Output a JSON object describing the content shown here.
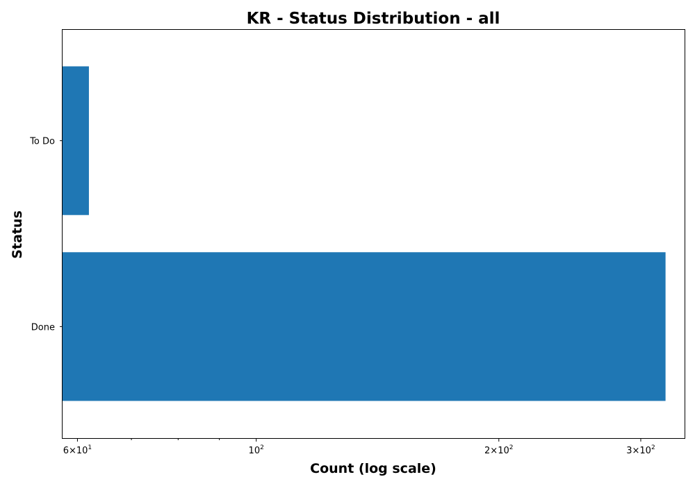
{
  "chart_data": {
    "type": "bar",
    "orientation": "horizontal",
    "title": "KR - Status Distribution - all",
    "xlabel": "Count (log scale)",
    "ylabel": "Status",
    "categories": [
      "Done",
      "To Do"
    ],
    "values": [
      322,
      62
    ],
    "x_scale": "log",
    "xlim": [
      57.5,
      340
    ],
    "grid": false,
    "legend": "none",
    "bar_color": "#1f77b4",
    "x_major_ticks": [
      {
        "value": 60,
        "mantissa": "6",
        "multiplier": "×",
        "base": "10",
        "exponent": "1"
      },
      {
        "value": 100,
        "mantissa": "",
        "multiplier": "",
        "base": "10",
        "exponent": "2"
      },
      {
        "value": 200,
        "mantissa": "2",
        "multiplier": "×",
        "base": "10",
        "exponent": "2"
      },
      {
        "value": 300,
        "mantissa": "3",
        "multiplier": "×",
        "base": "10",
        "exponent": "2"
      }
    ],
    "x_minor_ticks": [
      70,
      80,
      90
    ]
  }
}
